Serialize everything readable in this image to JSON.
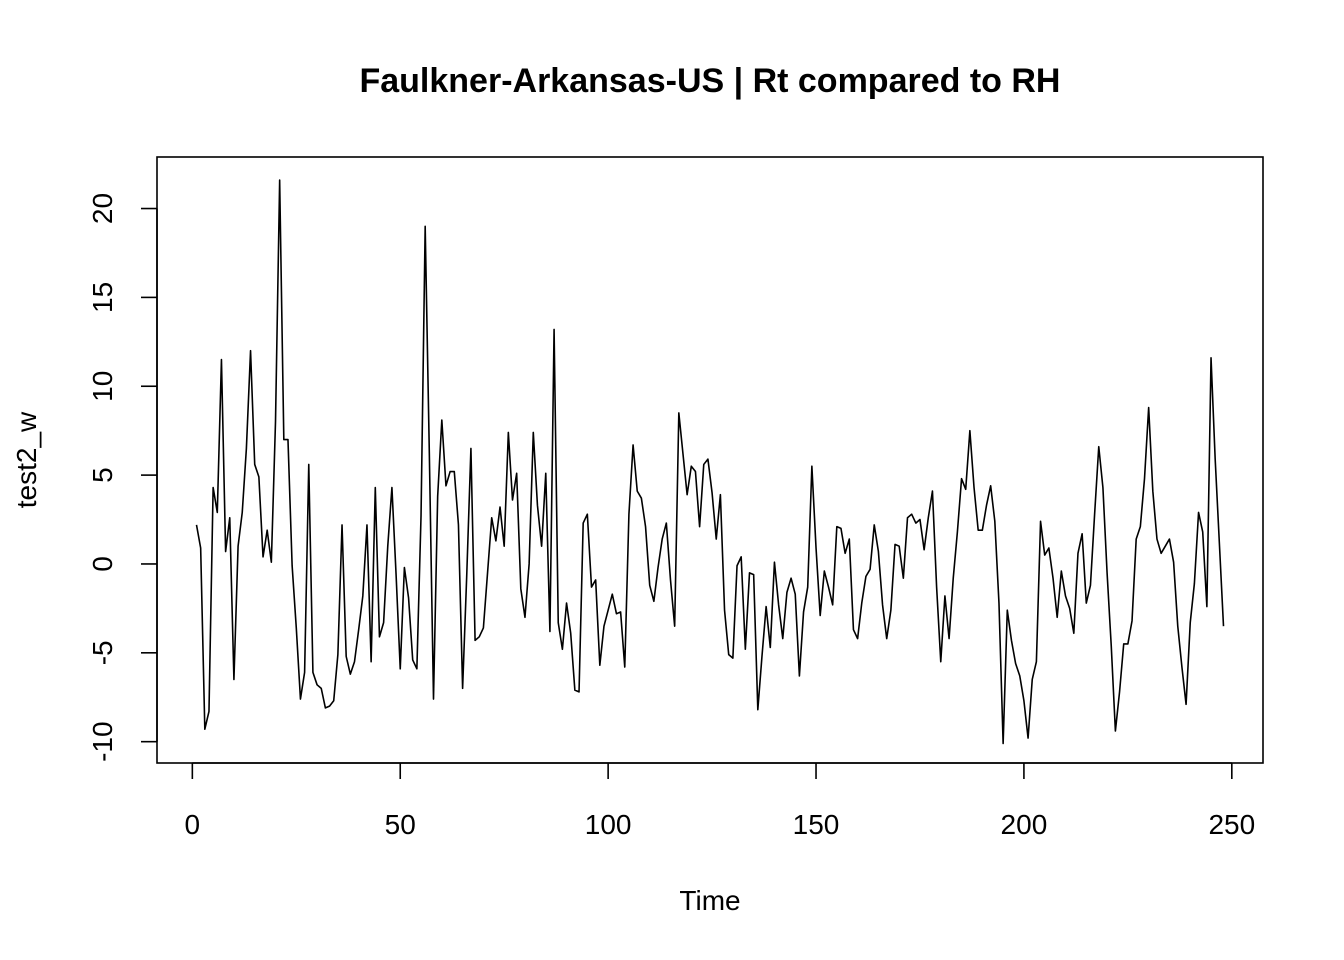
{
  "chart_data": {
    "type": "line",
    "title": "Faulkner-Arkansas-US | Rt compared to RH",
    "xlabel": "Time",
    "ylabel": "test2_w",
    "xlim": [
      -8.5,
      257.5
    ],
    "ylim": [
      -11.2,
      22.9
    ],
    "x_ticks": [
      0,
      50,
      100,
      150,
      200,
      250
    ],
    "y_ticks": [
      -10,
      -5,
      0,
      5,
      10,
      15,
      20
    ],
    "grid": false,
    "legend": "none",
    "series": [
      {
        "x_start": 1,
        "values": [
          2.2,
          0.9,
          -9.3,
          -8.3,
          4.3,
          2.9,
          11.5,
          0.7,
          2.6,
          -6.5,
          1.0,
          2.9,
          6.5,
          12.0,
          5.6,
          4.9,
          0.4,
          1.9,
          0.1,
          8.0,
          21.6,
          7.0,
          7.0,
          -0.1,
          -3.6,
          -7.6,
          -6.1,
          5.6,
          -6.1,
          -6.8,
          -7.0,
          -8.1,
          -8.0,
          -7.7,
          -5.1,
          2.2,
          -5.2,
          -6.2,
          -5.5,
          -3.7,
          -1.8,
          2.2,
          -5.5,
          4.3,
          -4.1,
          -3.3,
          1.0,
          4.3,
          -0.6,
          -5.9,
          -0.2,
          -1.9,
          -5.4,
          -5.9,
          2.7,
          19.0,
          6.2,
          -7.6,
          3.8,
          8.1,
          4.4,
          5.2,
          5.2,
          2.2,
          -7.0,
          -0.6,
          6.5,
          -4.3,
          -4.1,
          -3.6,
          -0.5,
          2.6,
          1.3,
          3.2,
          1.0,
          7.4,
          3.6,
          5.1,
          -1.4,
          -3.0,
          0.0,
          7.4,
          3.3,
          1.0,
          5.1,
          -3.8,
          13.2,
          -3.3,
          -4.8,
          -2.2,
          -3.9,
          -7.1,
          -7.2,
          2.3,
          2.8,
          -1.3,
          -0.9,
          -5.7,
          -3.5,
          -2.6,
          -1.7,
          -2.8,
          -2.7,
          -5.8,
          2.8,
          6.7,
          4.1,
          3.7,
          2.1,
          -1.2,
          -2.1,
          -0.2,
          1.4,
          2.3,
          -0.9,
          -3.5,
          8.5,
          6.2,
          3.9,
          5.5,
          5.2,
          2.1,
          5.6,
          5.9,
          4.0,
          1.4,
          3.9,
          -2.6,
          -5.1,
          -5.3,
          -0.1,
          0.4,
          -4.8,
          -0.5,
          -0.6,
          -8.2,
          -5.2,
          -2.4,
          -4.7,
          0.1,
          -2.3,
          -4.2,
          -1.6,
          -0.8,
          -1.7,
          -6.3,
          -2.7,
          -1.3,
          5.5,
          0.9,
          -2.9,
          -0.4,
          -1.3,
          -2.3,
          2.1,
          2.0,
          0.6,
          1.4,
          -3.7,
          -4.2,
          -2.2,
          -0.7,
          -0.3,
          2.2,
          0.7,
          -2.3,
          -4.2,
          -2.6,
          1.1,
          1.0,
          -0.8,
          2.6,
          2.8,
          2.3,
          2.5,
          0.8,
          2.6,
          4.1,
          -1.3,
          -5.5,
          -1.8,
          -4.2,
          -0.8,
          1.8,
          4.8,
          4.2,
          7.5,
          4.3,
          1.9,
          1.9,
          3.3,
          4.4,
          2.4,
          -2.2,
          -10.1,
          -2.6,
          -4.3,
          -5.6,
          -6.3,
          -7.7,
          -9.8,
          -6.5,
          -5.5,
          2.4,
          0.5,
          0.9,
          -0.8,
          -3.0,
          -0.4,
          -1.8,
          -2.5,
          -3.9,
          0.6,
          1.7,
          -2.2,
          -1.2,
          2.8,
          6.6,
          4.3,
          -0.5,
          -4.6,
          -9.4,
          -7.2,
          -4.5,
          -4.5,
          -3.2,
          1.4,
          2.1,
          4.8,
          8.8,
          4.1,
          1.4,
          0.6,
          1.0,
          1.4,
          0.1,
          -3.5,
          -5.8,
          -7.9,
          -3.3,
          -1.1,
          2.9,
          1.8,
          -2.4,
          11.6,
          5.9,
          1.2,
          -3.5
        ]
      }
    ]
  }
}
